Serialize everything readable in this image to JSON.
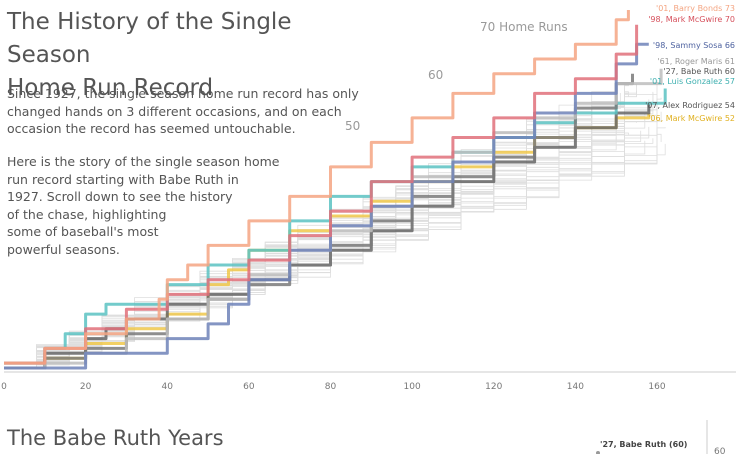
{
  "header": {
    "title_lines": [
      "The History of the Single Season",
      "Home Run Record"
    ]
  },
  "intro": {
    "p1_lines": [
      "Since 1927, the single season home run record has only",
      "changed hands on 3 different occasions, and on each",
      "occasion the record has seemed untouchable."
    ],
    "p2_lines": [
      "Here is the story of the single season home",
      "run record starting with Babe Ruth in",
      "1927. Scroll down to see the history",
      "of the chase, highlighting",
      "some of baseball's most",
      "powerful seasons."
    ]
  },
  "section": {
    "title": "The Babe Ruth Years",
    "mini_label": "'27, Babe Ruth (60)",
    "mini_tick": "60"
  },
  "chart_data": {
    "type": "line",
    "title": "",
    "xlabel": "",
    "ylabel": "",
    "xlim": [
      0,
      160
    ],
    "ylim": [
      0,
      73
    ],
    "x_ticks": [
      "0",
      "20",
      "40",
      "60",
      "80",
      "100",
      "120",
      "140",
      "160"
    ],
    "reference_labels": [
      {
        "value": 70,
        "label": "70 Home Runs"
      },
      {
        "value": 60,
        "label": "60"
      },
      {
        "value": 50,
        "label": "50"
      }
    ],
    "grid": false,
    "background_lines_count": 40,
    "series": [
      {
        "name": "'01, Barry Bonds 73",
        "color": "#f4a582",
        "final_game": 153,
        "final_hr": 73,
        "points": [
          [
            0,
            1
          ],
          [
            10,
            4
          ],
          [
            20,
            7
          ],
          [
            30,
            10
          ],
          [
            38,
            14
          ],
          [
            40,
            18
          ],
          [
            45,
            21
          ],
          [
            50,
            25
          ],
          [
            60,
            30
          ],
          [
            70,
            35
          ],
          [
            80,
            41
          ],
          [
            90,
            46
          ],
          [
            100,
            51
          ],
          [
            110,
            56
          ],
          [
            120,
            60
          ],
          [
            130,
            63
          ],
          [
            140,
            66
          ],
          [
            150,
            71
          ],
          [
            153,
            73
          ]
        ]
      },
      {
        "name": "'98, Mark McGwire 70",
        "color": "#e0707a",
        "final_game": 155,
        "final_hr": 70,
        "points": [
          [
            0,
            1
          ],
          [
            10,
            4
          ],
          [
            20,
            8
          ],
          [
            30,
            12
          ],
          [
            40,
            15
          ],
          [
            50,
            18
          ],
          [
            60,
            22
          ],
          [
            70,
            27
          ],
          [
            80,
            32
          ],
          [
            90,
            38
          ],
          [
            100,
            43
          ],
          [
            110,
            47
          ],
          [
            120,
            51
          ],
          [
            130,
            56
          ],
          [
            140,
            59
          ],
          [
            150,
            64
          ],
          [
            155,
            70
          ]
        ]
      },
      {
        "name": "'98, Sammy Sosa 66",
        "color": "#6f82b8",
        "final_game": 158,
        "final_hr": 66,
        "points": [
          [
            0,
            0
          ],
          [
            20,
            3
          ],
          [
            40,
            6
          ],
          [
            50,
            9
          ],
          [
            55,
            13
          ],
          [
            60,
            18
          ],
          [
            70,
            24
          ],
          [
            80,
            29
          ],
          [
            90,
            33
          ],
          [
            100,
            38
          ],
          [
            110,
            42
          ],
          [
            120,
            47
          ],
          [
            130,
            52
          ],
          [
            140,
            56
          ],
          [
            150,
            62
          ],
          [
            155,
            66
          ],
          [
            158,
            66
          ]
        ]
      },
      {
        "name": "'61, Roger Maris 61",
        "color": "#bdbdbd",
        "final_game": 161,
        "final_hr": 61,
        "points": [
          [
            0,
            0
          ],
          [
            10,
            1
          ],
          [
            20,
            3
          ],
          [
            30,
            6
          ],
          [
            40,
            10
          ],
          [
            50,
            14
          ],
          [
            60,
            19
          ],
          [
            70,
            24
          ],
          [
            80,
            28
          ],
          [
            90,
            33
          ],
          [
            100,
            39
          ],
          [
            110,
            44
          ],
          [
            120,
            48
          ],
          [
            130,
            51
          ],
          [
            140,
            54
          ],
          [
            150,
            58
          ],
          [
            161,
            61
          ]
        ]
      },
      {
        "name": "'27, Babe Ruth 60",
        "color": "#7a7a7a",
        "final_game": 154,
        "final_hr": 60,
        "points": [
          [
            0,
            0
          ],
          [
            10,
            2
          ],
          [
            20,
            4
          ],
          [
            30,
            7
          ],
          [
            40,
            10
          ],
          [
            50,
            14
          ],
          [
            60,
            17
          ],
          [
            70,
            21
          ],
          [
            80,
            25
          ],
          [
            90,
            30
          ],
          [
            100,
            35
          ],
          [
            110,
            39
          ],
          [
            120,
            43
          ],
          [
            130,
            47
          ],
          [
            140,
            53
          ],
          [
            150,
            58
          ],
          [
            154,
            60
          ]
        ]
      },
      {
        "name": "'01, Luis Gonzalez 57",
        "color": "#5bc2c2",
        "final_game": 162,
        "final_hr": 57,
        "points": [
          [
            0,
            1
          ],
          [
            10,
            4
          ],
          [
            15,
            7
          ],
          [
            20,
            11
          ],
          [
            25,
            13
          ],
          [
            40,
            17
          ],
          [
            50,
            21
          ],
          [
            60,
            24
          ],
          [
            70,
            30
          ],
          [
            80,
            35
          ],
          [
            90,
            38
          ],
          [
            100,
            41
          ],
          [
            110,
            44
          ],
          [
            120,
            47
          ],
          [
            130,
            50
          ],
          [
            140,
            52
          ],
          [
            150,
            54
          ],
          [
            162,
            57
          ]
        ]
      },
      {
        "name": "'07, Alex Rodriguez 54",
        "color": "#666666",
        "final_game": 158,
        "final_hr": 54,
        "points": [
          [
            0,
            0
          ],
          [
            10,
            3
          ],
          [
            20,
            6
          ],
          [
            25,
            8
          ],
          [
            30,
            10
          ],
          [
            40,
            13
          ],
          [
            50,
            15
          ],
          [
            60,
            18
          ],
          [
            70,
            21
          ],
          [
            80,
            24
          ],
          [
            90,
            28
          ],
          [
            100,
            33
          ],
          [
            110,
            38
          ],
          [
            120,
            42
          ],
          [
            130,
            45
          ],
          [
            140,
            49
          ],
          [
            150,
            52
          ],
          [
            158,
            54
          ]
        ]
      },
      {
        "name": "'06, Mark McGwire 52",
        "color": "#f0c84a",
        "final_game": 158,
        "final_hr": 52,
        "points": [
          [
            0,
            0
          ],
          [
            10,
            2
          ],
          [
            20,
            5
          ],
          [
            30,
            8
          ],
          [
            40,
            11
          ],
          [
            50,
            17
          ],
          [
            55,
            20
          ],
          [
            60,
            24
          ],
          [
            70,
            28
          ],
          [
            80,
            31
          ],
          [
            90,
            34
          ],
          [
            100,
            38
          ],
          [
            110,
            41
          ],
          [
            120,
            44
          ],
          [
            130,
            47
          ],
          [
            140,
            49
          ],
          [
            150,
            51
          ],
          [
            158,
            52
          ]
        ]
      }
    ]
  }
}
